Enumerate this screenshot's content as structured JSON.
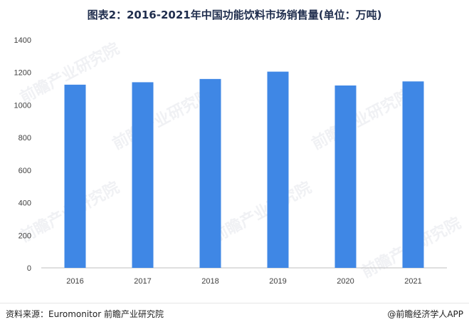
{
  "title": "图表2：2016-2021年中国功能饮料市场销售量(单位：万吨)",
  "source": "资料来源：Euromonitor 前瞻产业研究院",
  "credit": "@前瞻经济学人APP",
  "watermark": "前瞻产业研究院",
  "colors": {
    "bar": "#3f87e5",
    "axis": "#bfbfbf"
  },
  "chart_data": {
    "type": "bar",
    "title": "图表2：2016-2021年中国功能饮料市场销售量(单位：万吨)",
    "xlabel": "",
    "ylabel": "",
    "categories": [
      "2016",
      "2017",
      "2018",
      "2019",
      "2020",
      "2021"
    ],
    "values": [
      1125,
      1140,
      1160,
      1205,
      1120,
      1145
    ],
    "ylim": [
      0,
      1400
    ],
    "yticks": [
      0,
      200,
      400,
      600,
      800,
      1000,
      1200,
      1400
    ],
    "grid": false,
    "legend": "none"
  }
}
